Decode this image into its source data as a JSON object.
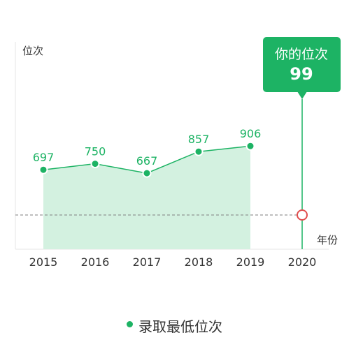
{
  "chart_data": {
    "type": "area",
    "categories": [
      "2015",
      "2016",
      "2017",
      "2018",
      "2019",
      "2020"
    ],
    "series": [
      {
        "name": "录取最低位次",
        "values": [
          697,
          750,
          667,
          857,
          906,
          null
        ]
      }
    ],
    "ylabel": "位次",
    "xlabel": "年份",
    "your_rank": {
      "label": "你的位次",
      "value": 99,
      "category": "2020"
    },
    "grid": false,
    "legend_position": "bottom",
    "colors": {
      "line": "#1db364",
      "area": "#d3f1e0",
      "marker_user": "#e14d4d",
      "axis": "#e6e6e6",
      "dashed": "#7f7f7f"
    }
  }
}
